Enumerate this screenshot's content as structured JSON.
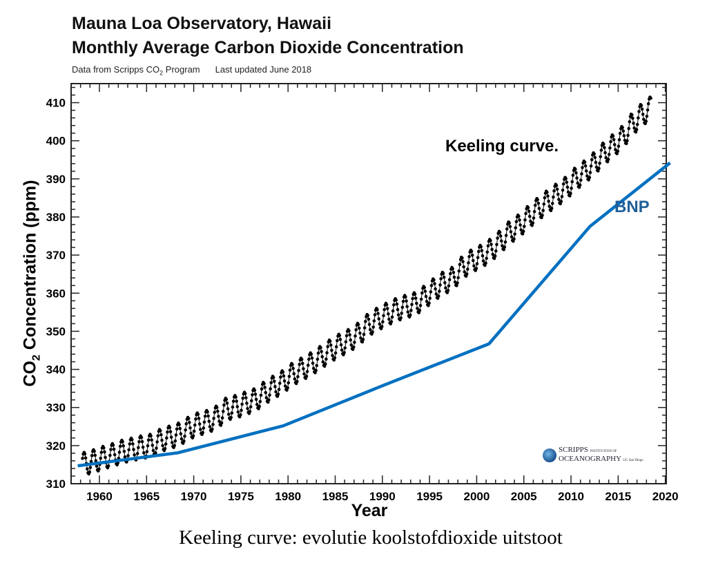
{
  "header": {
    "title_line1": "Mauna Loa Observatory, Hawaii",
    "title_line2": "Monthly Average Carbon Dioxide Concentration",
    "subtitle_source_prefix": "Data from Scripps CO",
    "subtitle_source_sub": "2",
    "subtitle_source_suffix": " Program",
    "subtitle_updated": "Last updated June 2018"
  },
  "caption": "Keeling curve: evolutie koolstofdioxide uitstoot",
  "logo": {
    "line1": "SCRIPPS",
    "line1_small": "INSTITUTION OF",
    "line2": "OCEANOGRAPHY",
    "line2_small": "UC San Diego"
  },
  "chart_data": {
    "type": "line",
    "title": "Mauna Loa Observatory, Hawaii — Monthly Average Carbon Dioxide Concentration",
    "xlabel": "Year",
    "ylabel_prefix": "CO",
    "ylabel_sub": "2",
    "ylabel_suffix": " Concentration (ppm)",
    "xlim": [
      1957,
      2020.1
    ],
    "ylim": [
      310,
      415
    ],
    "xticks": [
      1960,
      1965,
      1970,
      1975,
      1980,
      1985,
      1990,
      1995,
      2000,
      2005,
      2010,
      2015,
      2020
    ],
    "yticks": [
      310,
      320,
      330,
      340,
      350,
      360,
      370,
      380,
      390,
      400,
      410
    ],
    "grid": false,
    "annotations": [
      {
        "text": "Keeling curve.",
        "color": "#000000"
      },
      {
        "text": "BNP",
        "color": "#1f5f99"
      }
    ],
    "series": [
      {
        "name": "Keeling curve.",
        "style": "monthly markers with seasonal cycle",
        "color": "#000000",
        "seasonal_amplitude_ppm": 6,
        "years": [
          1958,
          1959,
          1960,
          1961,
          1962,
          1963,
          1964,
          1965,
          1966,
          1967,
          1968,
          1969,
          1970,
          1971,
          1972,
          1973,
          1974,
          1975,
          1976,
          1977,
          1978,
          1979,
          1980,
          1981,
          1982,
          1983,
          1984,
          1985,
          1986,
          1987,
          1988,
          1989,
          1990,
          1991,
          1992,
          1993,
          1994,
          1995,
          1996,
          1997,
          1998,
          1999,
          2000,
          2001,
          2002,
          2003,
          2004,
          2005,
          2006,
          2007,
          2008,
          2009,
          2010,
          2011,
          2012,
          2013,
          2014,
          2015,
          2016,
          2017,
          2018
        ],
        "annual_mean_ppm": [
          315.3,
          316.0,
          316.9,
          317.6,
          318.5,
          319.0,
          319.6,
          320.0,
          321.4,
          322.2,
          323.0,
          324.6,
          325.7,
          326.3,
          327.5,
          329.7,
          330.2,
          331.1,
          332.0,
          333.8,
          335.4,
          336.8,
          338.8,
          340.1,
          341.5,
          343.2,
          344.9,
          346.4,
          347.6,
          349.3,
          351.7,
          353.2,
          354.5,
          355.7,
          356.5,
          357.2,
          359.0,
          361.0,
          362.7,
          363.9,
          366.8,
          368.5,
          369.7,
          371.3,
          373.5,
          376.0,
          377.7,
          380.0,
          382.1,
          384.0,
          385.8,
          387.6,
          390.1,
          391.9,
          394.1,
          396.7,
          398.8,
          401.0,
          404.4,
          406.8,
          408.7
        ]
      },
      {
        "name": "BNP",
        "color": "#0070c0",
        "x": [
          1957.7,
          1968.3,
          1979.5,
          1990.2,
          2001.3,
          2012.0,
          2020.5
        ],
        "y": [
          314.7,
          318.1,
          325.2,
          335.9,
          346.7,
          377.5,
          394.2
        ]
      }
    ]
  }
}
